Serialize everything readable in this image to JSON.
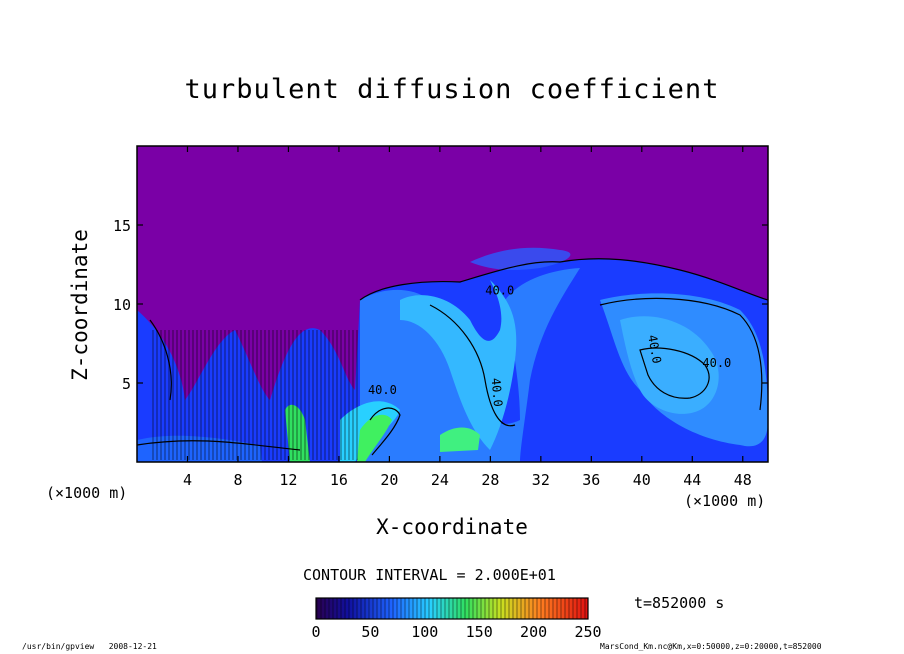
{
  "footer": {
    "program": "/usr/bin/gpview",
    "date": "2008-12-21",
    "file_info": "MarsCond_Km.nc@Km,x=0:50000,z=0:20000,t=852000"
  },
  "chart_data": {
    "type": "heatmap",
    "title": "turbulent diffusion coefficient",
    "xlabel": "X-coordinate",
    "ylabel": "Z-coordinate",
    "x_unit": "(×1000 m)",
    "y_unit": "(×1000 m)",
    "xlim": [
      0,
      50
    ],
    "ylim": [
      0,
      20
    ],
    "x_ticks": [
      4,
      8,
      12,
      16,
      20,
      24,
      28,
      32,
      36,
      40,
      44,
      48
    ],
    "y_ticks": [
      5,
      10,
      15
    ],
    "contour_interval": "CONTOUR INTERVAL = 2.000E+01",
    "contour_labels": [
      "40.0",
      "40.0",
      "40.0",
      "40.0",
      "40.0"
    ],
    "colorbar": {
      "min": 0,
      "max": 250,
      "ticks": [
        0,
        50,
        100,
        150,
        200,
        250
      ]
    },
    "time_label": "t=852000 s",
    "background_color": "#7a00a6",
    "grid": false
  }
}
